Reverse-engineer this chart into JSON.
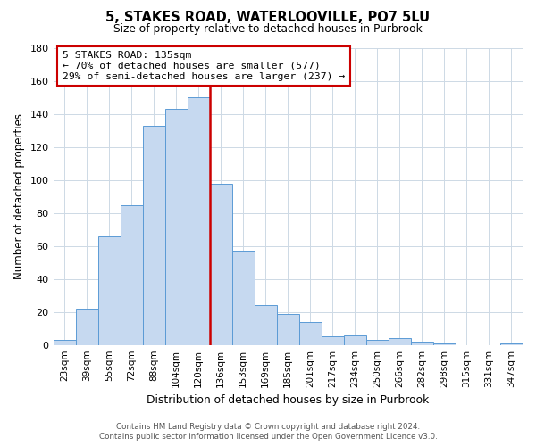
{
  "title": "5, STAKES ROAD, WATERLOOVILLE, PO7 5LU",
  "subtitle": "Size of property relative to detached houses in Purbrook",
  "xlabel": "Distribution of detached houses by size in Purbrook",
  "ylabel": "Number of detached properties",
  "bar_labels": [
    "23sqm",
    "39sqm",
    "55sqm",
    "72sqm",
    "88sqm",
    "104sqm",
    "120sqm",
    "136sqm",
    "153sqm",
    "169sqm",
    "185sqm",
    "201sqm",
    "217sqm",
    "234sqm",
    "250sqm",
    "266sqm",
    "282sqm",
    "298sqm",
    "315sqm",
    "331sqm",
    "347sqm"
  ],
  "bar_values": [
    3,
    22,
    66,
    85,
    133,
    143,
    150,
    98,
    57,
    24,
    19,
    14,
    5,
    6,
    3,
    4,
    2,
    1,
    0,
    0,
    1
  ],
  "bar_color": "#c6d9f0",
  "bar_edge_color": "#5b9bd5",
  "reference_line_x": 6.5,
  "reference_line_color": "#cc0000",
  "annotation_title": "5 STAKES ROAD: 135sqm",
  "annotation_line1": "← 70% of detached houses are smaller (577)",
  "annotation_line2": "29% of semi-detached houses are larger (237) →",
  "annotation_box_color": "#ffffff",
  "annotation_box_edge_color": "#cc0000",
  "ylim": [
    0,
    180
  ],
  "yticks": [
    0,
    20,
    40,
    60,
    80,
    100,
    120,
    140,
    160,
    180
  ],
  "footer_line1": "Contains HM Land Registry data © Crown copyright and database right 2024.",
  "footer_line2": "Contains public sector information licensed under the Open Government Licence v3.0.",
  "bg_color": "#ffffff",
  "grid_color": "#cdd9e5"
}
